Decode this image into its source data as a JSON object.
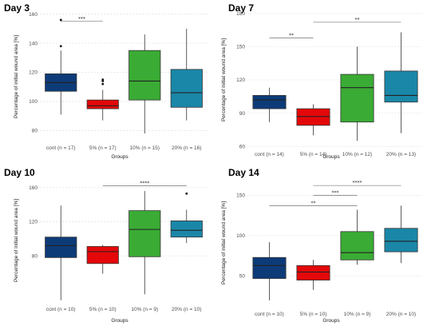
{
  "colors": {
    "cont": "#0d3b78",
    "pct5": "#e4080a",
    "pct10": "#3aab34",
    "pct20": "#1a87a8",
    "grid": "#dcdcdc"
  },
  "chart_data": [
    {
      "type": "boxplot",
      "title": "Day 3",
      "xlabel": "Groups",
      "ylabel": "Percentage of initial wound area [%]",
      "ylim": [
        72,
        162
      ],
      "yticks": [
        "80",
        "100",
        "120",
        "140",
        "160"
      ],
      "yticks_values": [
        80,
        100,
        120,
        140,
        160
      ],
      "categories": [
        "cont (n = 17)",
        "5% (n = 17)",
        "10% (n = 15)",
        "20% (n = 16)"
      ],
      "boxes": [
        {
          "min": 91,
          "q1": 107,
          "median": 113,
          "q3": 119,
          "max": 135,
          "outliers": [
            156,
            138
          ]
        },
        {
          "min": 87,
          "q1": 95,
          "median": 97,
          "q3": 101,
          "max": 108,
          "outliers": [
            115,
            114,
            112
          ]
        },
        {
          "min": 78,
          "q1": 101,
          "median": 114,
          "q3": 135,
          "max": 146,
          "outliers": []
        },
        {
          "min": 87,
          "q1": 96,
          "median": 106,
          "q3": 122,
          "max": 150,
          "outliers": []
        }
      ],
      "significance": [
        {
          "label": "***",
          "from": 0,
          "to": 1,
          "y": 155
        }
      ]
    },
    {
      "type": "boxplot",
      "title": "Day 7",
      "xlabel": "Groups",
      "ylabel": "Percentage of initial wound area [%]",
      "ylim": [
        58,
        182
      ],
      "yticks": [
        "60",
        "90",
        "120",
        "150",
        "180"
      ],
      "yticks_values": [
        60,
        90,
        120,
        150,
        180
      ],
      "categories": [
        "cont (n = 14)",
        "5% (n = 14)",
        "10% (n = 12)",
        "20% (n = 13)"
      ],
      "boxes": [
        {
          "min": 82,
          "q1": 94,
          "median": 102,
          "q3": 106,
          "max": 113,
          "outliers": []
        },
        {
          "min": 70,
          "q1": 79,
          "median": 87,
          "q3": 94,
          "max": 98,
          "outliers": []
        },
        {
          "min": 65,
          "q1": 82,
          "median": 113,
          "q3": 125,
          "max": 150,
          "outliers": []
        },
        {
          "min": 72,
          "q1": 100,
          "median": 106,
          "q3": 128,
          "max": 163,
          "outliers": []
        }
      ],
      "significance": [
        {
          "label": "**",
          "from": 0,
          "to": 1,
          "y": 158
        },
        {
          "label": "**",
          "from": 1,
          "to": 3,
          "y": 172
        }
      ]
    },
    {
      "type": "boxplot",
      "title": "Day 10",
      "xlabel": "Groups",
      "ylabel": "Percentage of initial wound area [%]",
      "ylim": [
        24,
        172
      ],
      "yticks": [
        "80",
        "120",
        "160"
      ],
      "yticks_values": [
        80,
        120,
        160
      ],
      "categories": [
        "cont (n = 10)",
        "5% (n = 10)",
        "10% (n = 9)",
        "20% (n = 10)"
      ],
      "boxes": [
        {
          "min": 28,
          "q1": 78,
          "median": 92,
          "q3": 102,
          "max": 139,
          "outliers": []
        },
        {
          "min": 59,
          "q1": 71,
          "median": 85,
          "q3": 91,
          "max": 93,
          "outliers": []
        },
        {
          "min": 35,
          "q1": 79,
          "median": 111,
          "q3": 133,
          "max": 156,
          "outliers": []
        },
        {
          "min": 95,
          "q1": 102,
          "median": 110,
          "q3": 121,
          "max": 134,
          "outliers": [
            153
          ]
        }
      ],
      "significance": [
        {
          "label": "****",
          "from": 1,
          "to": 3,
          "y": 162
        }
      ]
    },
    {
      "type": "boxplot",
      "title": "Day 14",
      "xlabel": "Groups",
      "ylabel": "Percentage of initial wound area [%]",
      "ylim": [
        10,
        172
      ],
      "yticks": [
        "50",
        "100",
        "150"
      ],
      "yticks_values": [
        50,
        100,
        150
      ],
      "categories": [
        "cont (n = 10)",
        "5% (n = 10)",
        "10% (n = 9)",
        "20% (n = 10)"
      ],
      "boxes": [
        {
          "min": 20,
          "q1": 47,
          "median": 63,
          "q3": 73,
          "max": 92,
          "outliers": []
        },
        {
          "min": 33,
          "q1": 45,
          "median": 55,
          "q3": 63,
          "max": 70,
          "outliers": []
        },
        {
          "min": 64,
          "q1": 70,
          "median": 79,
          "q3": 105,
          "max": 132,
          "outliers": []
        },
        {
          "min": 66,
          "q1": 80,
          "median": 93,
          "q3": 109,
          "max": 137,
          "outliers": []
        }
      ],
      "significance": [
        {
          "label": "****",
          "from": 1,
          "to": 3,
          "y": 162
        },
        {
          "label": "***",
          "from": 1,
          "to": 2,
          "y": 150
        },
        {
          "label": "**",
          "from": 0,
          "to": 2,
          "y": 137
        }
      ]
    }
  ]
}
